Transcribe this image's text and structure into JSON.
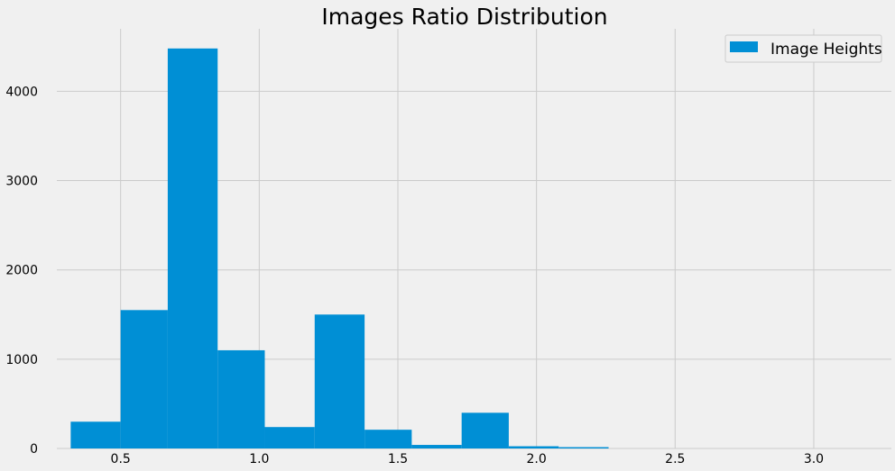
{
  "chart_data": {
    "type": "bar",
    "title": "Images Ratio Distribution",
    "xlabel": "",
    "ylabel": "",
    "xlim": [
      0.27,
      3.28
    ],
    "ylim": [
      0,
      4700
    ],
    "x_ticks": [
      0.5,
      1.0,
      1.5,
      2.0,
      2.5,
      3.0
    ],
    "x_tick_labels": [
      "0.5",
      "1.0",
      "1.5",
      "2.0",
      "2.5",
      "3.0"
    ],
    "y_ticks": [
      0,
      1000,
      2000,
      3000,
      4000
    ],
    "y_tick_labels": [
      "0",
      "1000",
      "2000",
      "3000",
      "4000"
    ],
    "grid": true,
    "legend_position": "top-right",
    "series": [
      {
        "name": "Image Heights",
        "color": "#008fd5",
        "bins": [
          {
            "x0": 0.32,
            "x1": 0.5,
            "count": 300
          },
          {
            "x0": 0.5,
            "x1": 0.67,
            "count": 1550
          },
          {
            "x0": 0.67,
            "x1": 0.85,
            "count": 4480
          },
          {
            "x0": 0.85,
            "x1": 1.02,
            "count": 1100
          },
          {
            "x0": 1.02,
            "x1": 1.2,
            "count": 240
          },
          {
            "x0": 1.2,
            "x1": 1.38,
            "count": 1500
          },
          {
            "x0": 1.38,
            "x1": 1.55,
            "count": 210
          },
          {
            "x0": 1.55,
            "x1": 1.73,
            "count": 40
          },
          {
            "x0": 1.73,
            "x1": 1.9,
            "count": 400
          },
          {
            "x0": 1.9,
            "x1": 2.08,
            "count": 25
          },
          {
            "x0": 2.08,
            "x1": 2.26,
            "count": 15
          }
        ]
      }
    ]
  }
}
